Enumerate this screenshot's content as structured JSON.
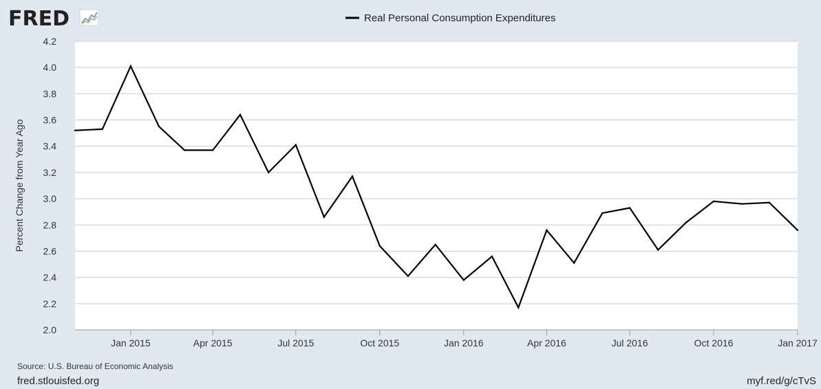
{
  "brand": {
    "logo_text": "FRED",
    "logo_icon": "line-chart-icon"
  },
  "footer": {
    "source": "Source: U.S. Bureau of Economic Analysis",
    "site": "fred.stlouisfed.org",
    "short_link": "myf.red/g/cTvS"
  },
  "colors": {
    "background": "#e1e9f0",
    "plot_bg": "#ffffff",
    "line": "#000000",
    "grid": "#cccccc"
  },
  "chart_data": {
    "type": "line",
    "title": "",
    "xlabel": "",
    "ylabel": "Percent Change from Year Ago",
    "ylim": [
      2.0,
      4.2
    ],
    "yticks": [
      "2.0",
      "2.2",
      "2.4",
      "2.6",
      "2.8",
      "3.0",
      "3.2",
      "3.4",
      "3.6",
      "3.8",
      "4.0",
      "4.2"
    ],
    "xticks": [
      "Jan 2015",
      "Apr 2015",
      "Jul 2015",
      "Oct 2015",
      "Jan 2016",
      "Apr 2016",
      "Jul 2016",
      "Oct 2016",
      "Jan 2017"
    ],
    "grid": true,
    "legend": "top-center",
    "series": [
      {
        "name": "Real Personal Consumption Expenditures",
        "color": "#000000",
        "x": [
          "2014-11-01",
          "2014-12-01",
          "2015-01-01",
          "2015-02-01",
          "2015-03-01",
          "2015-04-01",
          "2015-05-01",
          "2015-06-01",
          "2015-07-01",
          "2015-08-01",
          "2015-09-01",
          "2015-10-01",
          "2015-11-01",
          "2015-12-01",
          "2016-01-01",
          "2016-02-01",
          "2016-03-01",
          "2016-04-01",
          "2016-05-01",
          "2016-06-01",
          "2016-07-01",
          "2016-08-01",
          "2016-09-01",
          "2016-10-01",
          "2016-11-01",
          "2016-12-01",
          "2017-01-01"
        ],
        "values": [
          3.52,
          3.53,
          4.01,
          3.55,
          3.37,
          3.37,
          3.64,
          3.2,
          3.41,
          2.86,
          3.17,
          2.64,
          2.41,
          2.65,
          2.38,
          2.56,
          2.17,
          2.76,
          2.51,
          2.89,
          2.93,
          2.61,
          2.82,
          2.98,
          2.96,
          2.97,
          2.76
        ]
      }
    ]
  }
}
